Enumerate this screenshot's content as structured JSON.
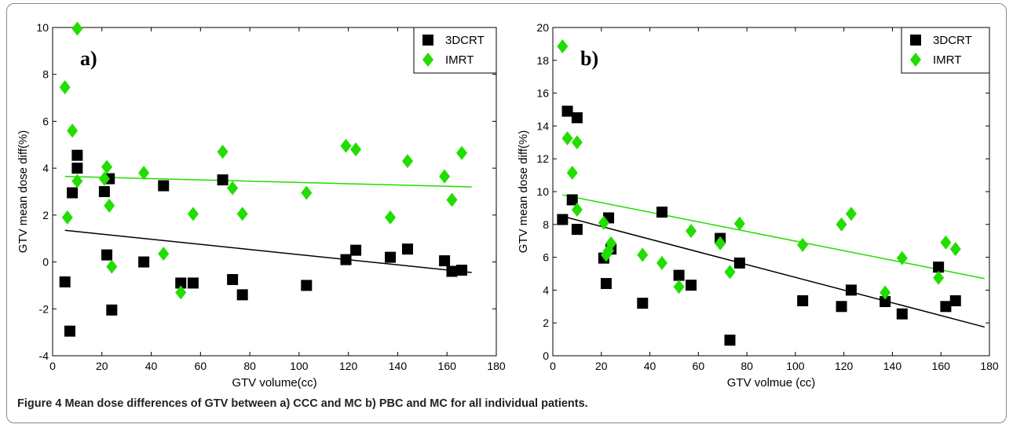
{
  "caption": {
    "label": "Figure 4",
    "text": "Mean dose differences of GTV between a) CCC and MC b) PBC and MC for all individual patients."
  },
  "colors": {
    "3dcrt": "#000000",
    "imrt": "#22dd00"
  },
  "chart_data": [
    {
      "type": "scatter",
      "panel_label": "a)",
      "xlabel": "GTV volume(cc)",
      "ylabel": "GTV mean dose diff(%)",
      "xlim": [
        0,
        180
      ],
      "ylim": [
        -4,
        10
      ],
      "xticks": [
        "0",
        "20",
        "40",
        "60",
        "80",
        "100",
        "120",
        "140",
        "160",
        "180"
      ],
      "yticks": [
        "-4",
        "-2",
        "0",
        "2",
        "4",
        "6",
        "8",
        "10"
      ],
      "legend_position": "top-right",
      "series": [
        {
          "name": "3DCRT",
          "marker": "square",
          "points": [
            [
              5,
              -0.85
            ],
            [
              7,
              -2.95
            ],
            [
              8,
              2.95
            ],
            [
              10,
              4.55
            ],
            [
              10,
              4.0
            ],
            [
              21,
              3.0
            ],
            [
              22,
              0.3
            ],
            [
              23,
              3.55
            ],
            [
              24,
              -2.05
            ],
            [
              37,
              0.0
            ],
            [
              45,
              3.25
            ],
            [
              52,
              -0.9
            ],
            [
              57,
              -0.9
            ],
            [
              69,
              3.5
            ],
            [
              73,
              -0.75
            ],
            [
              77,
              -1.4
            ],
            [
              103,
              -1.0
            ],
            [
              119,
              0.1
            ],
            [
              123,
              0.5
            ],
            [
              137,
              0.2
            ],
            [
              144,
              0.55
            ],
            [
              159,
              0.05
            ],
            [
              162,
              -0.4
            ],
            [
              166,
              -0.35
            ]
          ],
          "trend": [
            [
              5,
              1.35
            ],
            [
              170,
              -0.45
            ]
          ]
        },
        {
          "name": "IMRT",
          "marker": "diamond",
          "points": [
            [
              5,
              7.45
            ],
            [
              6,
              1.9
            ],
            [
              8,
              5.6
            ],
            [
              10,
              9.95
            ],
            [
              10,
              3.45
            ],
            [
              21,
              3.55
            ],
            [
              22,
              4.05
            ],
            [
              23,
              2.4
            ],
            [
              24,
              -0.2
            ],
            [
              37,
              3.8
            ],
            [
              45,
              0.35
            ],
            [
              52,
              -1.3
            ],
            [
              57,
              2.05
            ],
            [
              69,
              4.7
            ],
            [
              73,
              3.15
            ],
            [
              77,
              2.05
            ],
            [
              103,
              2.95
            ],
            [
              119,
              4.95
            ],
            [
              123,
              4.8
            ],
            [
              137,
              1.9
            ],
            [
              144,
              4.3
            ],
            [
              159,
              3.65
            ],
            [
              162,
              2.65
            ],
            [
              166,
              4.65
            ]
          ],
          "trend": [
            [
              5,
              3.65
            ],
            [
              170,
              3.2
            ]
          ]
        }
      ]
    },
    {
      "type": "scatter",
      "panel_label": "b)",
      "xlabel": "GTV volmue (cc)",
      "ylabel": "GTV mean dose diff(%)",
      "xlim": [
        0,
        180
      ],
      "ylim": [
        0,
        20
      ],
      "xticks": [
        "0",
        "20",
        "40",
        "60",
        "80",
        "100",
        "120",
        "140",
        "160",
        "180"
      ],
      "yticks": [
        "0",
        "2",
        "4",
        "6",
        "8",
        "10",
        "12",
        "14",
        "16",
        "18",
        "20"
      ],
      "legend_position": "top-right",
      "series": [
        {
          "name": "3DCRT",
          "marker": "square",
          "points": [
            [
              4,
              8.3
            ],
            [
              6,
              14.9
            ],
            [
              8,
              9.5
            ],
            [
              10,
              14.5
            ],
            [
              10,
              7.7
            ],
            [
              21,
              5.95
            ],
            [
              22,
              4.4
            ],
            [
              23,
              8.4
            ],
            [
              24,
              6.5
            ],
            [
              37,
              3.2
            ],
            [
              45,
              8.75
            ],
            [
              52,
              4.9
            ],
            [
              57,
              4.3
            ],
            [
              69,
              7.15
            ],
            [
              73,
              0.95
            ],
            [
              77,
              5.65
            ],
            [
              103,
              3.35
            ],
            [
              119,
              3.0
            ],
            [
              123,
              4.0
            ],
            [
              137,
              3.3
            ],
            [
              144,
              2.55
            ],
            [
              159,
              5.4
            ],
            [
              162,
              3.0
            ],
            [
              166,
              3.35
            ]
          ],
          "trend": [
            [
              4,
              8.5
            ],
            [
              178,
              1.75
            ]
          ]
        },
        {
          "name": "IMRT",
          "marker": "diamond",
          "points": [
            [
              4,
              18.85
            ],
            [
              6,
              13.25
            ],
            [
              8,
              11.15
            ],
            [
              10,
              13.0
            ],
            [
              10,
              8.9
            ],
            [
              21,
              8.1
            ],
            [
              22,
              6.15
            ],
            [
              23,
              6.4
            ],
            [
              24,
              6.85
            ],
            [
              37,
              6.15
            ],
            [
              45,
              5.65
            ],
            [
              52,
              4.2
            ],
            [
              57,
              7.6
            ],
            [
              69,
              6.85
            ],
            [
              73,
              5.1
            ],
            [
              77,
              8.05
            ],
            [
              103,
              6.75
            ],
            [
              119,
              8.0
            ],
            [
              123,
              8.65
            ],
            [
              137,
              3.85
            ],
            [
              144,
              5.95
            ],
            [
              159,
              4.75
            ],
            [
              162,
              6.9
            ],
            [
              166,
              6.5
            ]
          ],
          "trend": [
            [
              4,
              9.8
            ],
            [
              178,
              4.7
            ]
          ]
        }
      ]
    }
  ]
}
